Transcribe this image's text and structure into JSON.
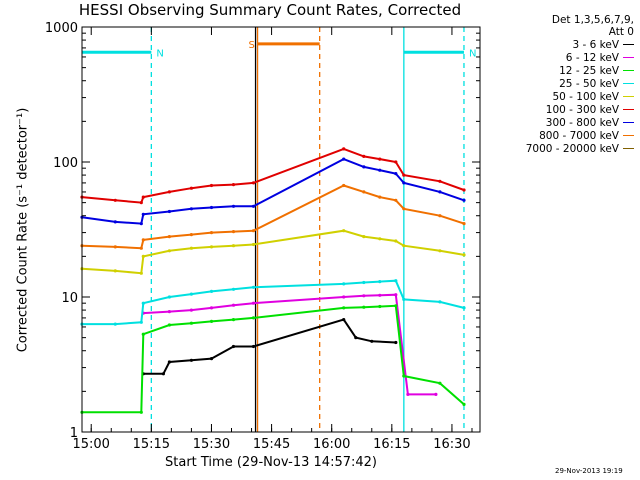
{
  "title": "HESSI Observing Summary Count Rates, Corrected",
  "legend_header": [
    "Det 1,3,5,6,7,9,",
    "Att 0"
  ],
  "timestamp": "29-Nov-2013 19:19",
  "chart_data": {
    "type": "line",
    "title": "HESSI Observing Summary Count Rates, Corrected",
    "xlabel": "Start Time (29-Nov-13 14:57:42)",
    "ylabel": "Corrected Count Rate (s⁻¹ detector⁻¹)",
    "y_scale": "log",
    "ylim": [
      1,
      1000
    ],
    "xlim": [
      "14:57:42",
      "16:37:00"
    ],
    "x_ticks": [
      "15:00",
      "15:15",
      "15:30",
      "15:45",
      "16:00",
      "16:15",
      "16:30"
    ],
    "y_ticks": [
      "1",
      "10",
      "100",
      "1000"
    ],
    "grid": false,
    "legend_position": "right",
    "series": [
      {
        "name": "3 - 6 keV",
        "color": "#000000",
        "points": [
          [
            "15:13:00",
            2.7
          ],
          [
            "15:18:00",
            2.7
          ],
          [
            "15:19:30",
            3.3
          ],
          [
            "15:25:00",
            3.4
          ],
          [
            "15:30:00",
            3.5
          ],
          [
            "15:35:30",
            4.3
          ],
          [
            "15:40:30",
            4.3
          ],
          [
            "16:03:00",
            6.8
          ],
          [
            "16:06:00",
            5.0
          ],
          [
            "16:10:00",
            4.7
          ],
          [
            "16:16:00",
            4.6
          ]
        ]
      },
      {
        "name": "6 - 12 keV",
        "color": "#e000e0",
        "points": [
          [
            "15:13:00",
            7.6
          ],
          [
            "15:19:30",
            7.8
          ],
          [
            "15:25:00",
            8.0
          ],
          [
            "15:30:00",
            8.3
          ],
          [
            "15:35:30",
            8.7
          ],
          [
            "15:40:30",
            9.0
          ],
          [
            "16:03:00",
            10.0
          ],
          [
            "16:08:00",
            10.2
          ],
          [
            "16:12:00",
            10.3
          ],
          [
            "16:16:00",
            10.4
          ],
          [
            "16:19:00",
            1.9
          ],
          [
            "16:26:00",
            1.9
          ]
        ]
      },
      {
        "name": "12 - 25 keV",
        "color": "#00e000",
        "points": [
          [
            "14:57:42",
            1.4
          ],
          [
            "15:12:30",
            1.4
          ],
          [
            "15:13:00",
            5.3
          ],
          [
            "15:19:30",
            6.2
          ],
          [
            "15:25:00",
            6.4
          ],
          [
            "15:30:00",
            6.6
          ],
          [
            "15:35:30",
            6.8
          ],
          [
            "15:40:30",
            7.0
          ],
          [
            "16:03:00",
            8.3
          ],
          [
            "16:08:00",
            8.4
          ],
          [
            "16:12:00",
            8.5
          ],
          [
            "16:16:00",
            8.6
          ],
          [
            "16:18:00",
            2.6
          ],
          [
            "16:27:00",
            2.3
          ],
          [
            "16:33:00",
            1.6
          ]
        ]
      },
      {
        "name": "25 - 50 keV",
        "color": "#00e0e0",
        "points": [
          [
            "14:57:42",
            6.3
          ],
          [
            "15:06:00",
            6.3
          ],
          [
            "15:12:30",
            6.5
          ],
          [
            "15:13:00",
            9.0
          ],
          [
            "15:19:30",
            10.0
          ],
          [
            "15:25:00",
            10.5
          ],
          [
            "15:30:00",
            11.0
          ],
          [
            "15:35:30",
            11.4
          ],
          [
            "15:40:30",
            11.8
          ],
          [
            "16:03:00",
            12.5
          ],
          [
            "16:08:00",
            12.8
          ],
          [
            "16:12:00",
            13.0
          ],
          [
            "16:16:00",
            13.2
          ],
          [
            "16:18:00",
            9.6
          ],
          [
            "16:27:00",
            9.2
          ],
          [
            "16:33:00",
            8.3
          ]
        ]
      },
      {
        "name": "50 - 100 keV",
        "color": "#d0d000",
        "points": [
          [
            "14:57:42",
            16.2
          ],
          [
            "15:06:00",
            15.6
          ],
          [
            "15:12:30",
            15.0
          ],
          [
            "15:13:00",
            20.0
          ],
          [
            "15:19:30",
            22.0
          ],
          [
            "15:25:00",
            23.0
          ],
          [
            "15:30:00",
            23.5
          ],
          [
            "15:35:30",
            24.0
          ],
          [
            "15:40:30",
            24.5
          ],
          [
            "16:03:00",
            31.0
          ],
          [
            "16:08:00",
            28.0
          ],
          [
            "16:12:00",
            27.0
          ],
          [
            "16:16:00",
            26.0
          ],
          [
            "16:18:00",
            24.0
          ],
          [
            "16:27:00",
            22.0
          ],
          [
            "16:33:00",
            20.5
          ]
        ]
      },
      {
        "name": "100 - 300 keV",
        "color": "#e00000",
        "points": [
          [
            "14:57:42",
            55.0
          ],
          [
            "15:06:00",
            52.0
          ],
          [
            "15:12:30",
            50.0
          ],
          [
            "15:13:00",
            55.0
          ],
          [
            "15:19:30",
            60.0
          ],
          [
            "15:25:00",
            64.0
          ],
          [
            "15:30:00",
            67.0
          ],
          [
            "15:35:30",
            68.0
          ],
          [
            "15:40:30",
            70.0
          ],
          [
            "16:03:00",
            125.0
          ],
          [
            "16:08:00",
            110.0
          ],
          [
            "16:12:00",
            105.0
          ],
          [
            "16:16:00",
            100.0
          ],
          [
            "16:18:00",
            80.0
          ],
          [
            "16:27:00",
            72.0
          ],
          [
            "16:33:00",
            62.0
          ]
        ]
      },
      {
        "name": "300 - 800 keV",
        "color": "#0000e0",
        "points": [
          [
            "14:57:42",
            39.0
          ],
          [
            "15:06:00",
            36.0
          ],
          [
            "15:12:30",
            35.0
          ],
          [
            "15:13:00",
            41.0
          ],
          [
            "15:19:30",
            43.0
          ],
          [
            "15:25:00",
            45.0
          ],
          [
            "15:30:00",
            46.0
          ],
          [
            "15:35:30",
            47.0
          ],
          [
            "15:40:30",
            47.0
          ],
          [
            "16:03:00",
            105.0
          ],
          [
            "16:08:00",
            92.0
          ],
          [
            "16:12:00",
            87.0
          ],
          [
            "16:16:00",
            82.0
          ],
          [
            "16:18:00",
            70.0
          ],
          [
            "16:27:00",
            60.0
          ],
          [
            "16:33:00",
            52.0
          ]
        ]
      },
      {
        "name": "800 - 7000 keV",
        "color": "#f07000",
        "points": [
          [
            "14:57:42",
            24.0
          ],
          [
            "15:06:00",
            23.5
          ],
          [
            "15:12:30",
            23.0
          ],
          [
            "15:13:00",
            26.5
          ],
          [
            "15:19:30",
            28.0
          ],
          [
            "15:25:00",
            29.0
          ],
          [
            "15:30:00",
            30.0
          ],
          [
            "15:35:30",
            30.5
          ],
          [
            "15:40:30",
            31.0
          ],
          [
            "16:03:00",
            67.0
          ],
          [
            "16:08:00",
            60.0
          ],
          [
            "16:12:00",
            55.0
          ],
          [
            "16:16:00",
            52.0
          ],
          [
            "16:18:00",
            45.0
          ],
          [
            "16:27:00",
            40.0
          ],
          [
            "16:33:00",
            35.0
          ]
        ]
      },
      {
        "name": "7000 - 20000 keV",
        "color": "#806000",
        "points": []
      }
    ],
    "overlays": [
      {
        "kind": "flag-bar",
        "label": "N",
        "color": "#00e0e0",
        "y": 650,
        "start": "14:57:42",
        "end": "15:15:00",
        "line_style": "dashed"
      },
      {
        "kind": "flag-bar",
        "label": "N",
        "color": "#00e0e0",
        "y": 650,
        "start": "16:18:00",
        "end": "16:33:00",
        "line_style": "solid"
      },
      {
        "kind": "flag-bar",
        "label": "S",
        "color": "#f07000",
        "y": 750,
        "start": "15:41:30",
        "end": "15:57:00",
        "line_style": "dashed"
      },
      {
        "kind": "vline",
        "color": "#00e0e0",
        "x": "16:18:00",
        "line_style": "solid"
      },
      {
        "kind": "vline",
        "color": "#00e0e0",
        "x": "16:33:00",
        "line_style": "dashed"
      },
      {
        "kind": "vline",
        "color": "#00e0e0",
        "x": "15:15:00",
        "line_style": "dashed"
      },
      {
        "kind": "vline",
        "color": "#f07000",
        "x": "15:41:30",
        "line_style": "solid"
      },
      {
        "kind": "vline",
        "color": "#f07000",
        "x": "15:57:00",
        "line_style": "dashed"
      },
      {
        "kind": "vline",
        "color": "#000000",
        "x": "15:41:00",
        "line_style": "solid"
      }
    ]
  }
}
